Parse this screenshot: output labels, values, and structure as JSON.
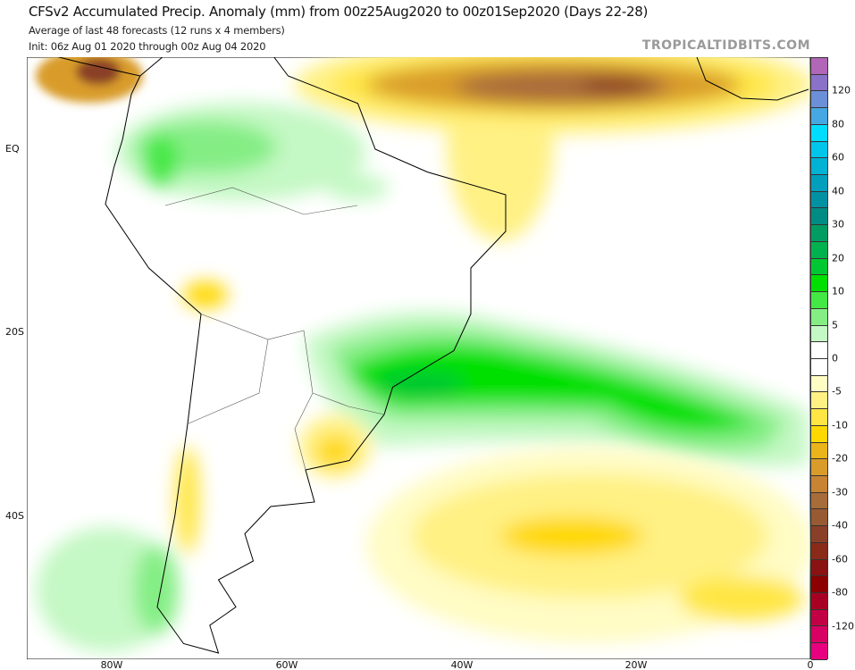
{
  "header": {
    "title": "CFSv2 Accumulated Precip. Anomaly (mm) from 00z25Aug2020 to 00z01Sep2020 (Days 22-28)",
    "subtitle": "Average of last 48 forecasts (12 runs x 4 members)",
    "init": "Init: 06z Aug 01 2020 through 00z Aug 04 2020",
    "watermark": "TROPICALTIDBITS.COM"
  },
  "axes": {
    "lat_labels": [
      "EQ",
      "20S",
      "40S"
    ],
    "lon_labels": [
      "80W",
      "60W",
      "40W",
      "20W",
      "0"
    ]
  },
  "colorbar": {
    "labels": [
      "120",
      "80",
      "60",
      "40",
      "30",
      "20",
      "10",
      "5",
      "0",
      "-5",
      "-10",
      "-20",
      "-30",
      "-40",
      "-60",
      "-80",
      "-120"
    ],
    "colors": [
      "#b266b8",
      "#8a72c8",
      "#6c90d8",
      "#46a8e2",
      "#00dcff",
      "#00c6ec",
      "#00b2d4",
      "#00a0bc",
      "#0092a2",
      "#008c84",
      "#009c62",
      "#00b24e",
      "#00c832",
      "#00e000",
      "#44e844",
      "#84ee84",
      "#c4f8c4",
      "#ffffff",
      "#ffffff",
      "#fffcc4",
      "#fff184",
      "#ffe644",
      "#ffd800",
      "#ebb41a",
      "#d99c2a",
      "#c88432",
      "#a86c3a",
      "#985a32",
      "#8a4028",
      "#8a2a18",
      "#8a1212",
      "#8c0000",
      "#a80022",
      "#c20044",
      "#d80062",
      "#e80080"
    ]
  }
}
